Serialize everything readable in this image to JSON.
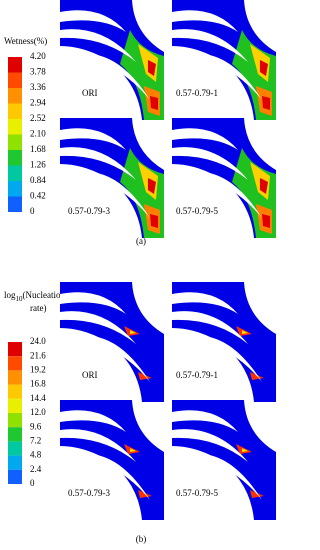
{
  "panel_a": {
    "legend": {
      "title": "Wetness(%)",
      "ticks": [
        "4.20",
        "3.78",
        "3.36",
        "2.94",
        "2.52",
        "2.10",
        "1.68",
        "1.26",
        "0.84",
        "0.42",
        "0"
      ]
    },
    "cases": [
      "ORI",
      "0.57-0.79-1",
      "0.57-0.79-3",
      "0.57-0.79-5"
    ],
    "caption": "(a)"
  },
  "panel_b": {
    "legend": {
      "title": {
        "main": "log",
        "subscript": "10",
        "rest": "(Nucleation",
        "line2": "rate)"
      },
      "ticks": [
        "24.0",
        "21.6",
        "19.2",
        "16.8",
        "14.4",
        "12.0",
        "9.6",
        "7.2",
        "4.8",
        "2.4",
        "0"
      ]
    },
    "cases": [
      "ORI",
      "0.57-0.79-1",
      "0.57-0.79-3",
      "0.57-0.79-5"
    ],
    "caption": "(b)"
  }
}
